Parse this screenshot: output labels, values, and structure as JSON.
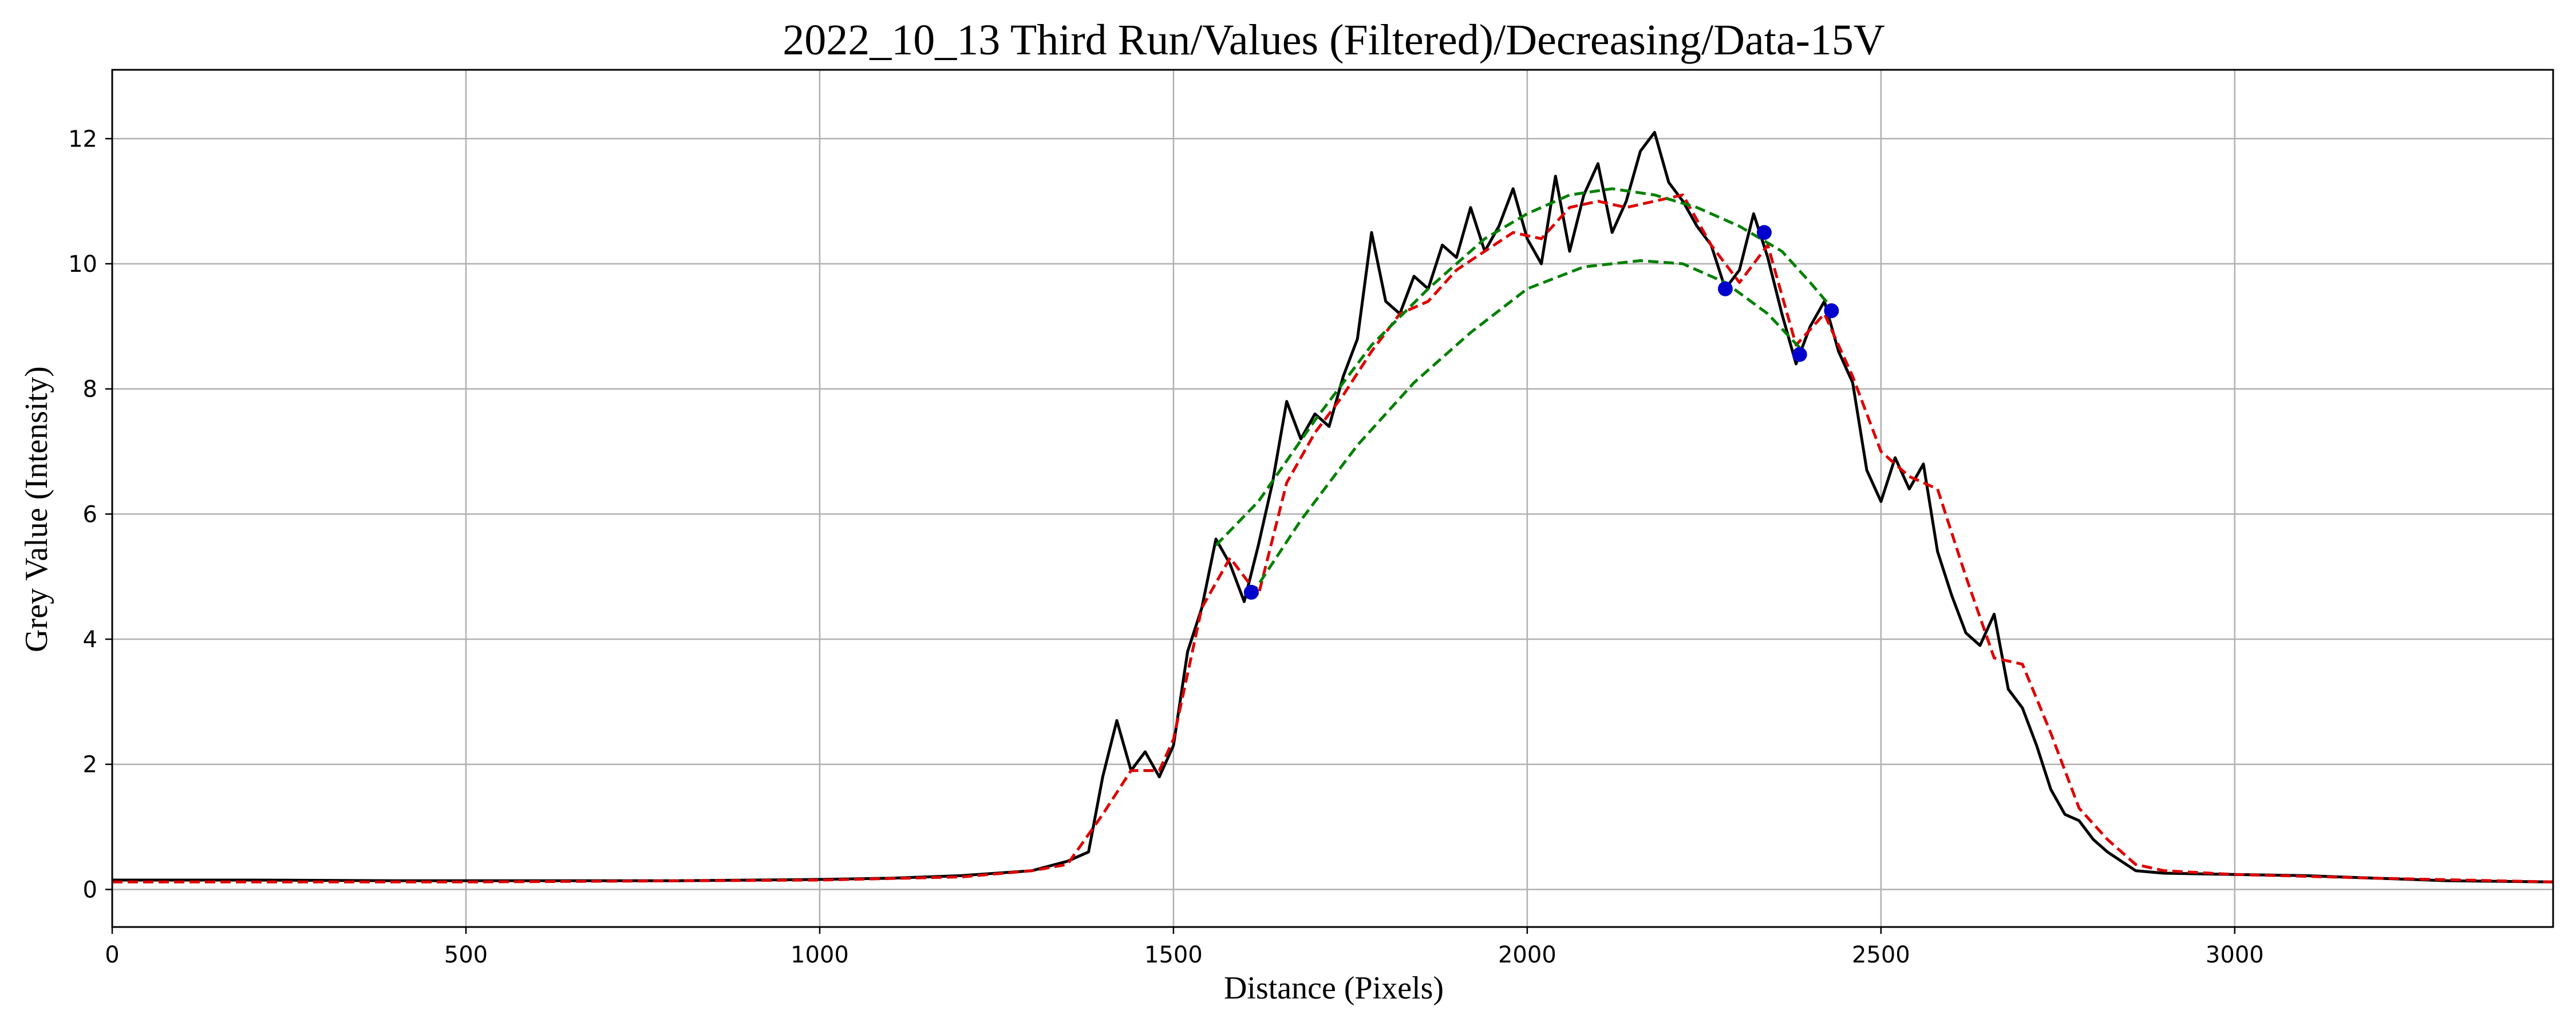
{
  "chart_data": {
    "type": "line",
    "title": "2022_10_13 Third Run/Values (Filtered)/Decreasing/Data-15V",
    "xlabel": "Distance (Pixels)",
    "ylabel": "Grey Value (Intensity)",
    "xlim": [
      0,
      3450
    ],
    "ylim": [
      -0.6,
      13.1
    ],
    "x_ticks": [
      0,
      500,
      1000,
      1500,
      2000,
      2500,
      3000
    ],
    "y_ticks": [
      0,
      2,
      4,
      6,
      8,
      10,
      12
    ],
    "grid": true,
    "legend": "none",
    "series": [
      {
        "style": "solid",
        "color": "#000000",
        "x": [
          0,
          200,
          400,
          600,
          800,
          1000,
          1100,
          1200,
          1300,
          1350,
          1380,
          1400,
          1420,
          1440,
          1460,
          1480,
          1500,
          1520,
          1540,
          1560,
          1580,
          1600,
          1620,
          1640,
          1660,
          1680,
          1700,
          1720,
          1740,
          1760,
          1780,
          1800,
          1820,
          1840,
          1860,
          1880,
          1900,
          1920,
          1940,
          1960,
          1980,
          2000,
          2020,
          2040,
          2060,
          2080,
          2100,
          2120,
          2140,
          2160,
          2180,
          2200,
          2220,
          2240,
          2260,
          2280,
          2300,
          2320,
          2340,
          2360,
          2380,
          2400,
          2420,
          2440,
          2460,
          2480,
          2500,
          2520,
          2540,
          2560,
          2580,
          2600,
          2620,
          2640,
          2660,
          2680,
          2700,
          2720,
          2740,
          2760,
          2780,
          2800,
          2820,
          2840,
          2860,
          2900,
          3000,
          3100,
          3200,
          3300,
          3450
        ],
        "y": [
          0.15,
          0.15,
          0.14,
          0.14,
          0.14,
          0.16,
          0.18,
          0.22,
          0.3,
          0.45,
          0.6,
          1.8,
          2.7,
          1.9,
          2.2,
          1.8,
          2.3,
          3.8,
          4.5,
          5.6,
          5.2,
          4.6,
          5.5,
          6.5,
          7.8,
          7.2,
          7.6,
          7.4,
          8.2,
          8.8,
          10.5,
          9.4,
          9.2,
          9.8,
          9.6,
          10.3,
          10.1,
          10.9,
          10.2,
          10.6,
          11.2,
          10.4,
          10.0,
          11.4,
          10.2,
          11.1,
          11.6,
          10.5,
          11.0,
          11.8,
          12.1,
          11.3,
          11.0,
          10.6,
          10.3,
          9.6,
          9.9,
          10.8,
          10.1,
          9.2,
          8.4,
          9.0,
          9.4,
          8.6,
          8.1,
          6.7,
          6.2,
          6.9,
          6.4,
          6.8,
          5.4,
          4.7,
          4.1,
          3.9,
          4.4,
          3.2,
          2.9,
          2.3,
          1.6,
          1.2,
          1.1,
          0.8,
          0.6,
          0.45,
          0.3,
          0.26,
          0.24,
          0.22,
          0.18,
          0.14,
          0.12
        ]
      },
      {
        "style": "dashed",
        "color": "#dd0000",
        "x": [
          0,
          500,
          1000,
          1200,
          1300,
          1350,
          1400,
          1440,
          1480,
          1500,
          1540,
          1580,
          1620,
          1660,
          1700,
          1740,
          1780,
          1820,
          1860,
          1900,
          1940,
          1980,
          2020,
          2060,
          2100,
          2140,
          2180,
          2220,
          2260,
          2300,
          2340,
          2380,
          2420,
          2460,
          2500,
          2540,
          2580,
          2620,
          2660,
          2700,
          2740,
          2780,
          2820,
          2860,
          2900,
          3000,
          3200,
          3450
        ],
        "y": [
          0.12,
          0.12,
          0.15,
          0.2,
          0.3,
          0.4,
          1.2,
          1.9,
          1.9,
          2.4,
          4.5,
          5.3,
          4.7,
          6.5,
          7.3,
          7.9,
          8.6,
          9.2,
          9.4,
          9.9,
          10.2,
          10.5,
          10.4,
          10.9,
          11.0,
          10.9,
          11.0,
          11.1,
          10.3,
          9.7,
          10.3,
          8.7,
          9.2,
          8.2,
          7.0,
          6.6,
          6.4,
          5.0,
          3.7,
          3.6,
          2.5,
          1.3,
          0.8,
          0.4,
          0.3,
          0.24,
          0.18,
          0.12
        ]
      },
      {
        "style": "dashed",
        "color": "#008000",
        "x": [
          1560,
          1620,
          1700,
          1780,
          1860,
          1940,
          2000,
          2060,
          2120,
          2180,
          2240,
          2300,
          2360,
          2400,
          2430
        ],
        "y": [
          5.5,
          6.2,
          7.5,
          8.7,
          9.6,
          10.4,
          10.8,
          11.1,
          11.2,
          11.1,
          10.9,
          10.6,
          10.2,
          9.7,
          9.3
        ]
      },
      {
        "style": "dashed",
        "color": "#008000",
        "x": [
          1610,
          1680,
          1760,
          1840,
          1920,
          2000,
          2080,
          2160,
          2220,
          2280,
          2340,
          2390
        ],
        "y": [
          4.7,
          5.9,
          7.1,
          8.1,
          8.9,
          9.6,
          9.95,
          10.05,
          10.0,
          9.7,
          9.2,
          8.6
        ]
      }
    ],
    "markers": {
      "color": "#0000cc",
      "x": [
        1610,
        2280,
        2335,
        2385,
        2430
      ],
      "y": [
        4.75,
        9.6,
        10.5,
        8.55,
        9.25
      ]
    }
  }
}
